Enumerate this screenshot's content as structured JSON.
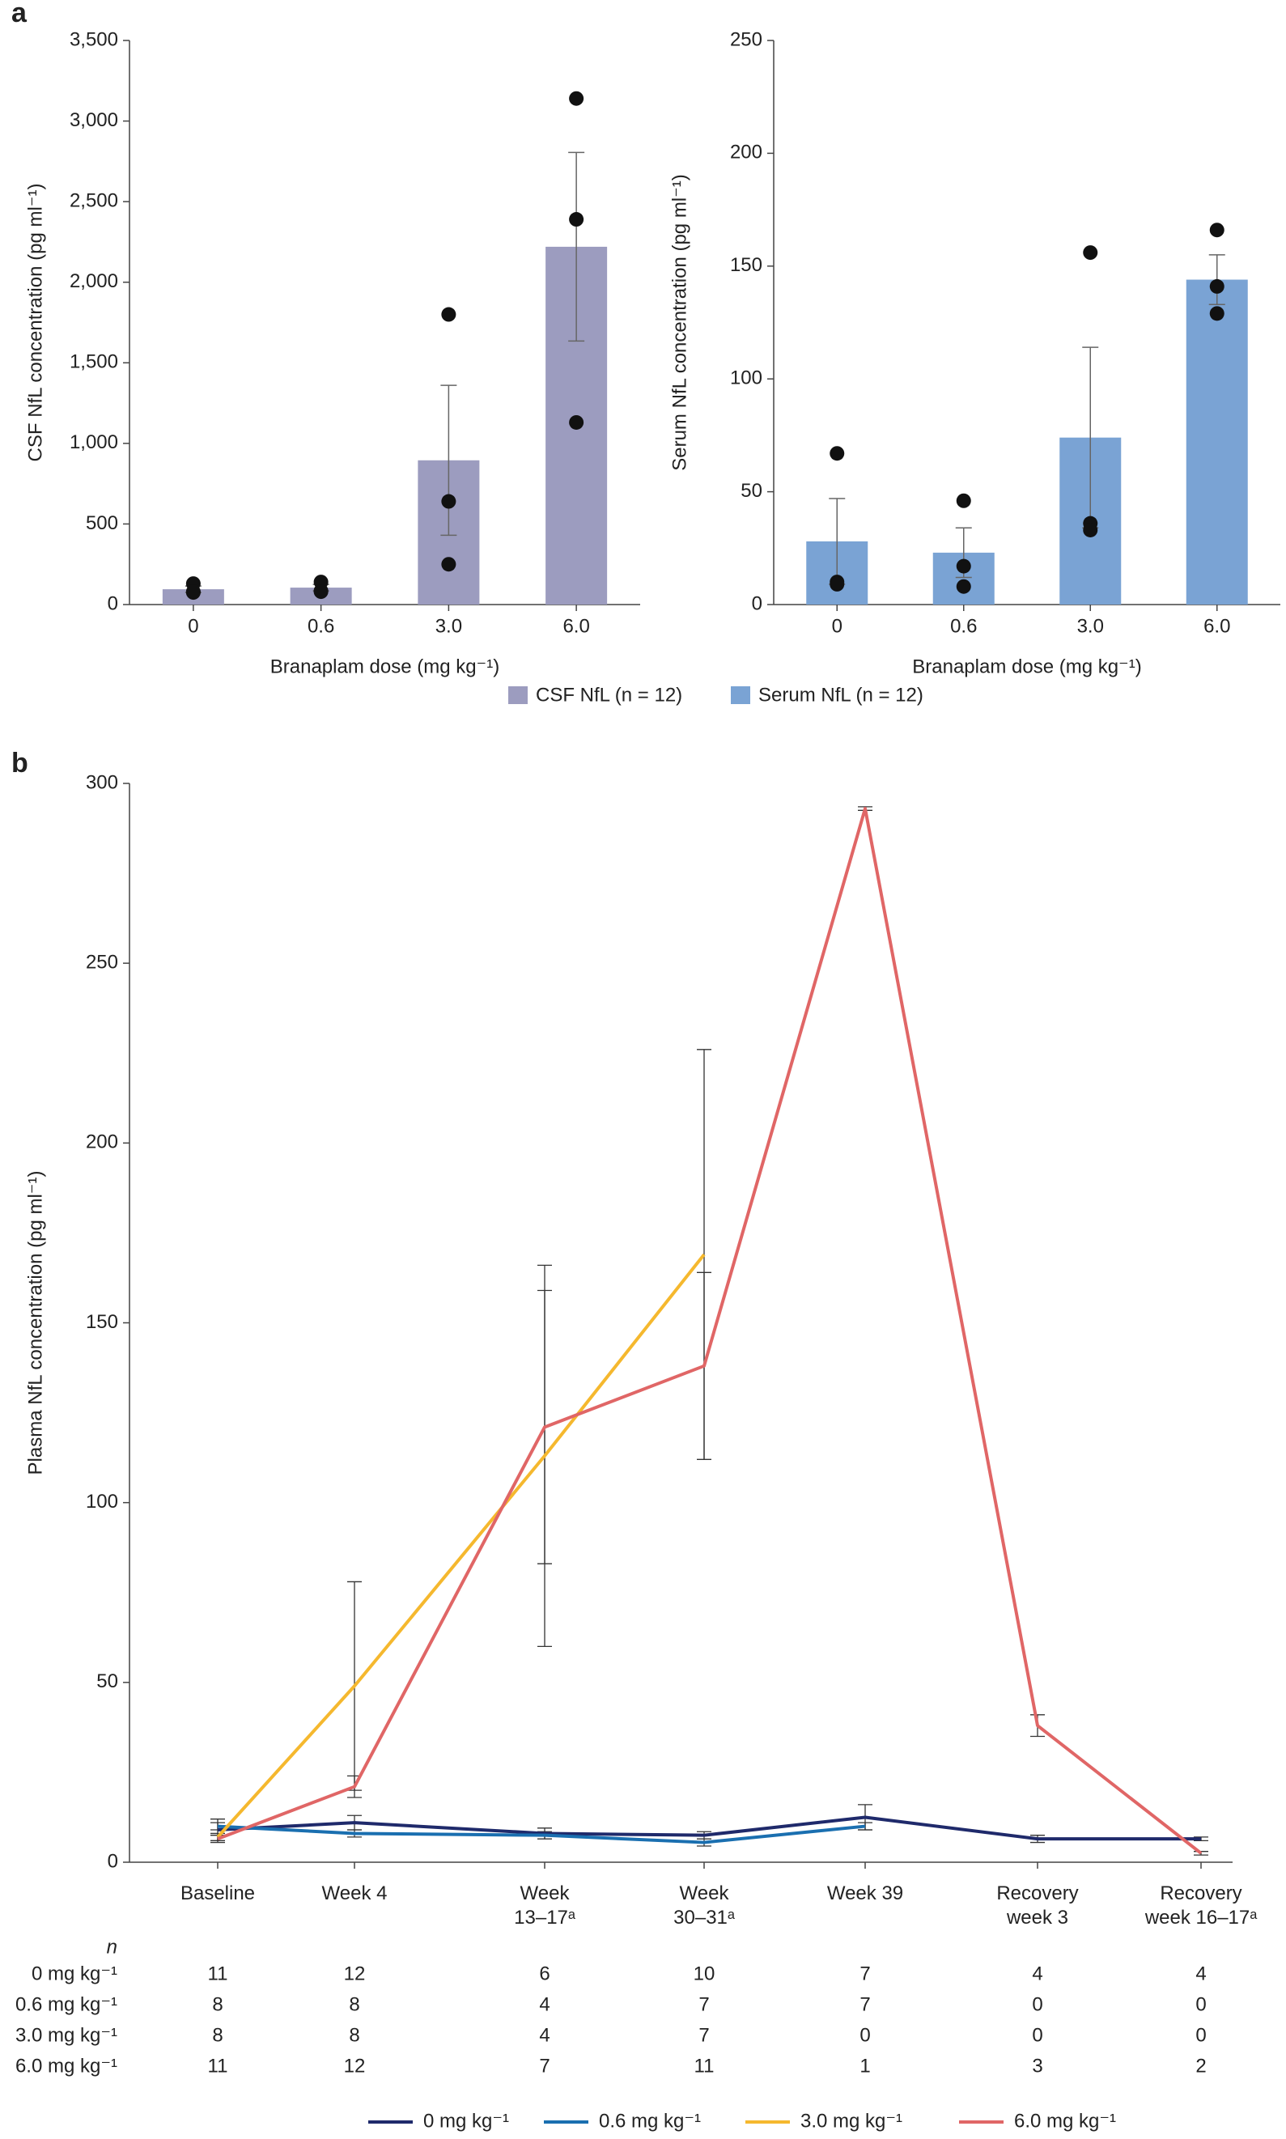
{
  "panel_labels": [
    "a",
    "b"
  ],
  "chart_data": [
    {
      "type": "bar",
      "categories": [
        "0",
        "0.6",
        "3.0",
        "6.0"
      ],
      "values": [
        95,
        105,
        895,
        2220
      ],
      "errors": [
        20,
        20,
        465,
        585
      ],
      "points": [
        [
          130,
          75,
          80
        ],
        [
          140,
          85,
          80
        ],
        [
          1800,
          640,
          250
        ],
        [
          3140,
          2390,
          1130
        ]
      ],
      "color": "#9c9cbf",
      "ylim": [
        0,
        3500
      ],
      "yticks": [
        0,
        500,
        {
          "value": 1000,
          "label": "1,000"
        },
        {
          "value": 1500,
          "label": "1,500"
        },
        {
          "value": 2000,
          "label": "2,000"
        },
        {
          "value": 2500,
          "label": "2,500"
        },
        {
          "value": 3000,
          "label": "3,000"
        },
        {
          "value": 3500,
          "label": "3,500"
        }
      ],
      "ylabel": "CSF NfL concentration (pg ml⁻¹)",
      "xlabel": "Branaplam dose (mg kg⁻¹)",
      "legend": "CSF NfL (n = 12)"
    },
    {
      "type": "bar",
      "categories": [
        "0",
        "0.6",
        "3.0",
        "6.0"
      ],
      "values": [
        28,
        23,
        74,
        144
      ],
      "errors": [
        19,
        11,
        40,
        11
      ],
      "points": [
        [
          67,
          10,
          9
        ],
        [
          46,
          17,
          8
        ],
        [
          156,
          36,
          33
        ],
        [
          166,
          141,
          129
        ]
      ],
      "color": "#7aa3d4",
      "ylim": [
        0,
        250
      ],
      "yticks": [
        0,
        50,
        100,
        150,
        200,
        250
      ],
      "ylabel": "Serum NfL concentration (pg ml⁻¹)",
      "xlabel": "Branaplam dose (mg kg⁻¹)",
      "legend": "Serum NfL (n = 12)"
    },
    {
      "type": "line",
      "categories": [
        "Baseline",
        "Week 4",
        "Week\n13–17ᵃ",
        "Week\n30–31ᵃ",
        "Week 39",
        "Recovery\nweek 3",
        "Recovery\nweek 16–17ᵃ"
      ],
      "series": [
        {
          "name": "0 mg kg⁻¹",
          "color": "#1f2a6b",
          "values": [
            9,
            11,
            8,
            7.5,
            12.5,
            6.5,
            6.5
          ],
          "errors": [
            3,
            2,
            1.5,
            1,
            3.5,
            1,
            0.5
          ]
        },
        {
          "name": "0.6 mg kg⁻¹",
          "color": "#1a6fb0",
          "values": [
            10,
            8,
            7.5,
            5.5,
            10,
            null,
            null
          ],
          "errors": [
            1,
            1,
            1,
            1,
            1,
            null,
            null
          ]
        },
        {
          "name": "3.0 mg kg⁻¹",
          "color": "#f5b82e",
          "values": [
            7,
            49,
            113,
            169,
            null,
            null,
            null
          ],
          "errors": [
            1,
            29,
            53,
            57,
            null,
            null,
            null
          ]
        },
        {
          "name": "6.0 mg kg⁻¹",
          "color": "#e06666",
          "values": [
            6.5,
            21,
            121,
            138,
            293,
            38,
            2.5
          ],
          "errors": [
            1,
            3,
            38,
            26,
            0.5,
            3,
            0.5
          ]
        }
      ],
      "ylim": [
        0,
        300
      ],
      "yticks": [
        0,
        50,
        100,
        150,
        200,
        250,
        300
      ],
      "ylabel": "Plasma NfL concentration (pg ml⁻¹)",
      "n_table": {
        "title": "n",
        "rows": [
          {
            "label": "0 mg kg⁻¹",
            "values": [
              11,
              12,
              6,
              10,
              7,
              4,
              4
            ]
          },
          {
            "label": "0.6 mg kg⁻¹",
            "values": [
              8,
              8,
              4,
              7,
              7,
              0,
              0
            ]
          },
          {
            "label": "3.0 mg kg⁻¹",
            "values": [
              8,
              8,
              4,
              7,
              0,
              0,
              0
            ]
          },
          {
            "label": "6.0 mg kg⁻¹",
            "values": [
              11,
              12,
              7,
              11,
              1,
              3,
              2
            ]
          }
        ]
      }
    }
  ]
}
